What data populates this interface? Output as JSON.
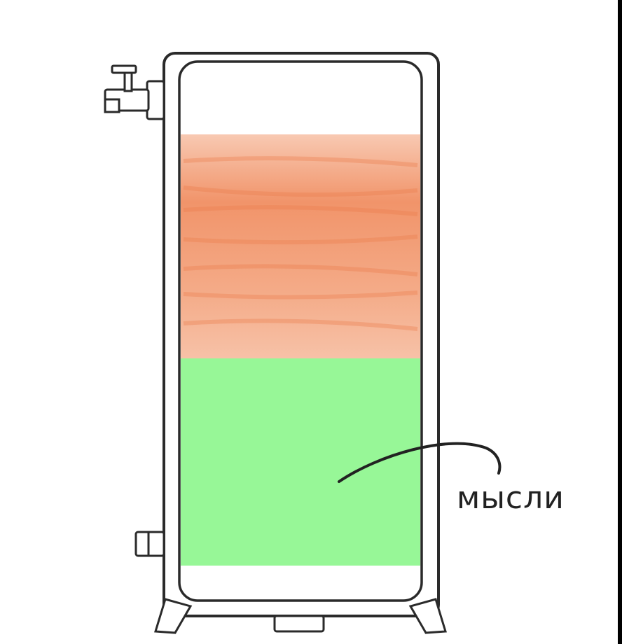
{
  "illustration": {
    "annotation_label": "мысли",
    "colors": {
      "background": "#ffffff",
      "outline": "#2a2a2a",
      "upper_layer": "#f0a07a",
      "lower_layer": "#97f797",
      "frame": "#000000"
    },
    "icons": [
      "valve-icon",
      "drain-pipe-icon",
      "support-leg-icon"
    ]
  }
}
